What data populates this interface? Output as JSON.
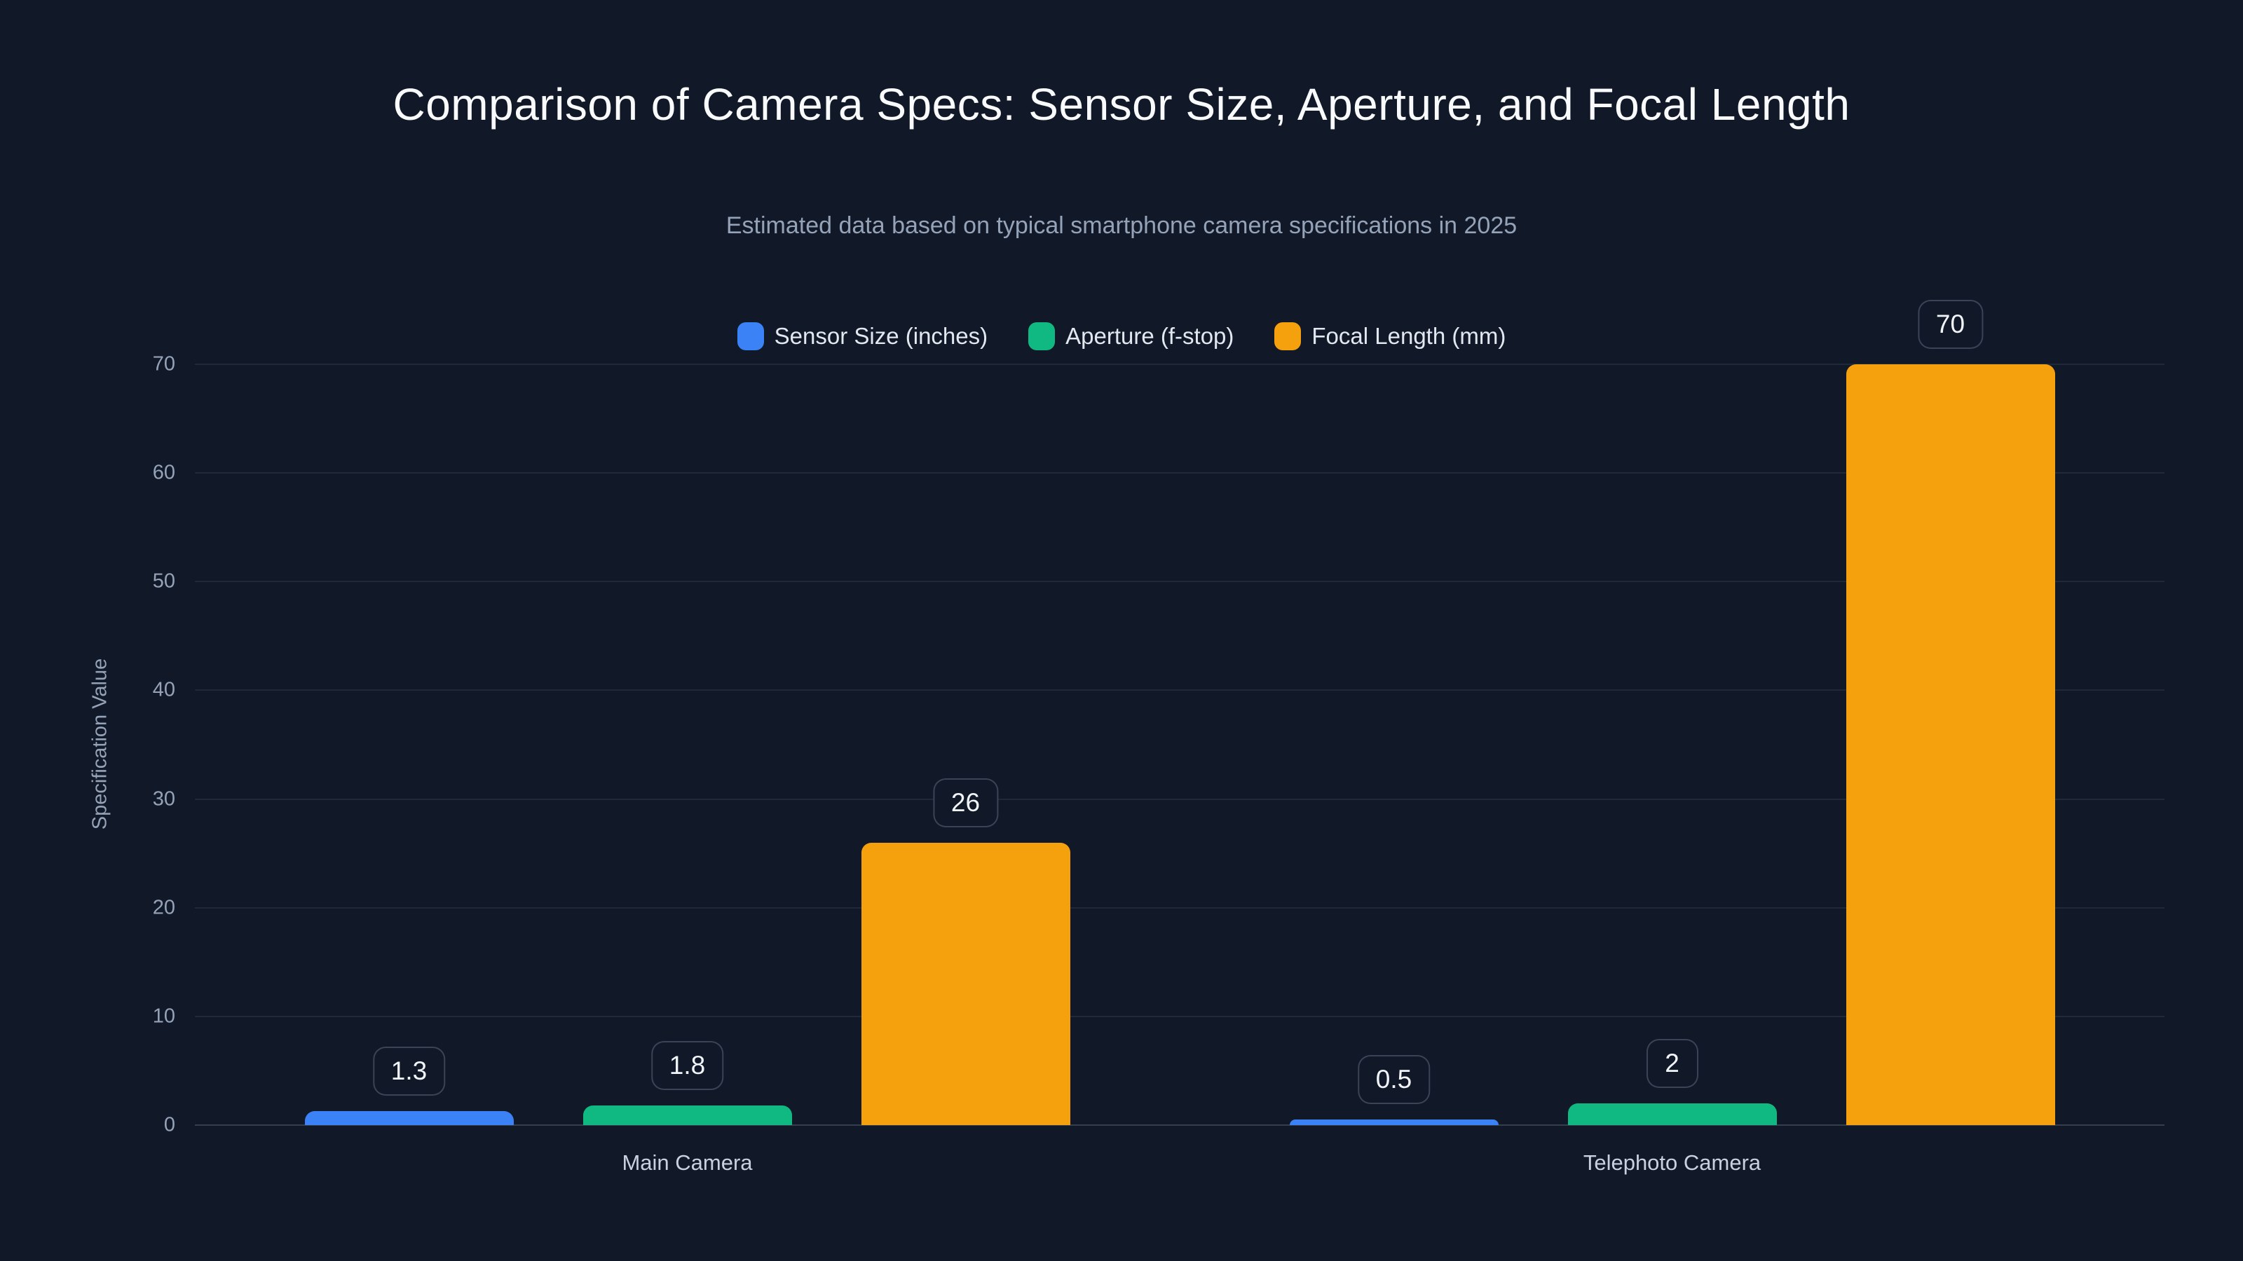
{
  "title": "Comparison of Camera Specs: Sensor Size, Aperture, and Focal Length",
  "subtitle": "Estimated data based on typical smartphone camera specifications in 2025",
  "chart_data": {
    "type": "bar",
    "title": "Comparison of Camera Specs: Sensor Size, Aperture, and Focal Length",
    "subtitle": "Estimated data based on typical smartphone camera specifications in 2025",
    "categories": [
      "Main Camera",
      "Telephoto Camera"
    ],
    "series": [
      {
        "name": "Sensor Size (inches)",
        "color": "#3b82f6",
        "values": [
          1.3,
          0.5
        ]
      },
      {
        "name": "Aperture (f-stop)",
        "color": "#10b981",
        "values": [
          1.8,
          2
        ]
      },
      {
        "name": "Focal Length (mm)",
        "color": "#f5a00d",
        "values": [
          26,
          70
        ]
      }
    ],
    "value_labels": [
      [
        "1.3",
        "0.5"
      ],
      [
        "1.8",
        "2"
      ],
      [
        "26",
        "70"
      ]
    ],
    "xlabel": "",
    "ylabel": "Specification Value",
    "yticks": [
      0,
      10,
      20,
      30,
      40,
      50,
      60,
      70
    ],
    "ylim": [
      0,
      70
    ],
    "grid": true,
    "legend_position": "top-center",
    "background_color": "#111828"
  }
}
